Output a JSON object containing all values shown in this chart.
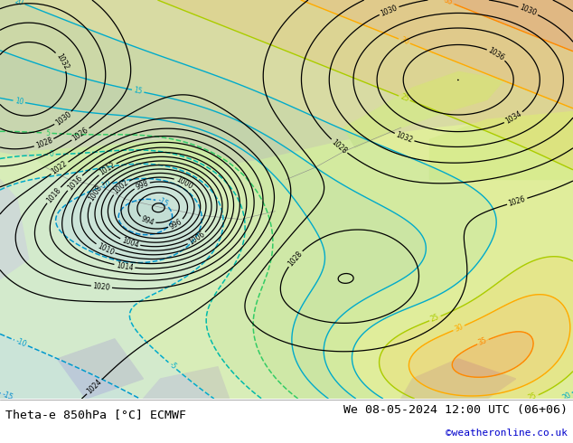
{
  "title_left": "Theta-e 850hPa [°C] ECMWF",
  "title_right": "We 08-05-2024 12:00 UTC (06+06)",
  "copyright": "©weatheronline.co.uk",
  "fig_width": 6.34,
  "fig_height": 4.9,
  "dpi": 100,
  "bottom_text_color": "#000000",
  "copyright_color": "#0000cc",
  "title_fontsize": 9.5,
  "copyright_fontsize": 8,
  "theta_colors": {
    "-55": "#000066",
    "-50": "#0000aa",
    "-45": "#0000dd",
    "-40": "#0033ff",
    "-35": "#3366ff",
    "-30": "#6699ff",
    "-25": "#88aaff",
    "-20": "#aabbff",
    "-15": "#0088cc",
    "-10": "#0099cc",
    "-5": "#00aacc",
    "0": "#00bbaa",
    "5": "#33cc66",
    "10": "#66cc33",
    "15": "#99cc00",
    "20": "#cccc00",
    "25": "#ffcc00",
    "30": "#ffaa00",
    "35": "#ff8800",
    "40": "#ff6600",
    "45": "#ff3300",
    "50": "#dd0000",
    "55": "#aa0000"
  }
}
